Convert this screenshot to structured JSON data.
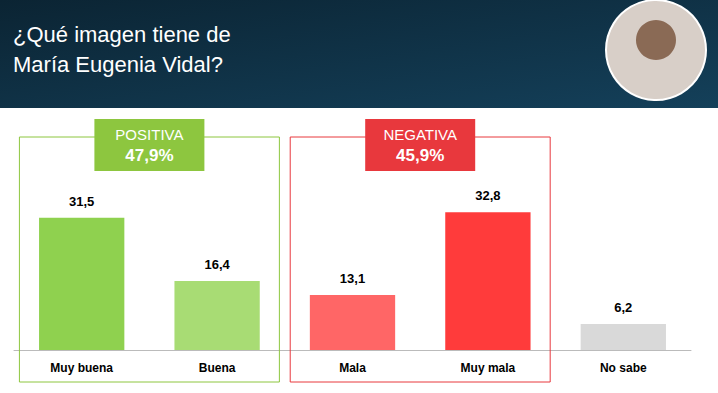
{
  "chart_data": {
    "type": "bar",
    "title": "¿Qué imagen tiene de María Eugenia Vidal?",
    "categories": [
      "Muy buena",
      "Buena",
      "Mala",
      "Muy mala",
      "No sabe"
    ],
    "values": [
      31.5,
      16.4,
      13.1,
      32.8,
      6.2
    ],
    "value_labels": [
      "31,5",
      "16,4",
      "13,1",
      "32,8",
      "6,2"
    ],
    "colors": [
      "#8fd14f",
      "#a8dc74",
      "#ff6666",
      "#ff3b3b",
      "#d9d9d9"
    ],
    "ylim": [
      0,
      40
    ],
    "grid": false,
    "data_labels": true,
    "tick_labels": "x",
    "annotations": [
      {
        "text": "POSITIVA",
        "value": 47.9,
        "value_label": "47,9%",
        "color": "#8dc63f",
        "categories": [
          "Muy buena",
          "Buena"
        ]
      },
      {
        "text": "NEGATIVA",
        "value": 45.9,
        "value_label": "45,9%",
        "color": "#e8383d",
        "categories": [
          "Mala",
          "Muy mala"
        ]
      }
    ]
  }
}
